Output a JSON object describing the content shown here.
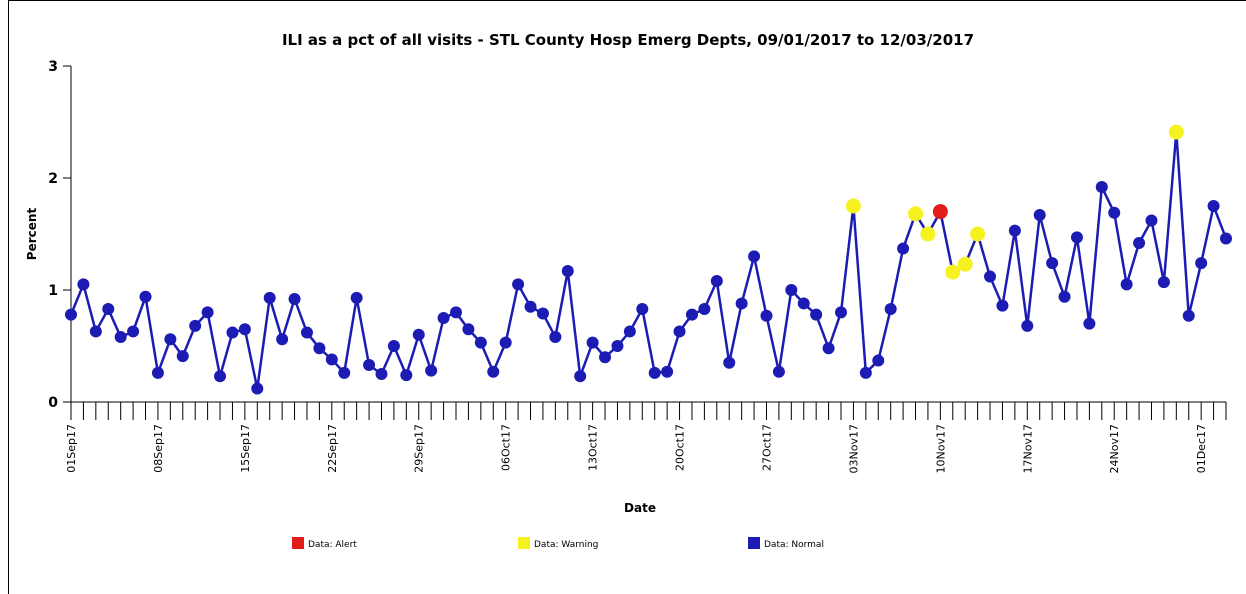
{
  "chart_data": {
    "type": "line",
    "title": "ILI as a pct of all visits - STL County Hosp Emerg Depts, 09/01/2017 to 12/03/2017",
    "xlabel": "Date",
    "ylabel": "Percent",
    "ylim": [
      0,
      3
    ],
    "yticks": [
      "0",
      "1",
      "2",
      "3"
    ],
    "x_start": "2017-09-01",
    "x_end": "2017-12-03",
    "x_tick_labels": [
      {
        "date": "2017-09-01",
        "label": "01Sep17"
      },
      {
        "date": "2017-09-08",
        "label": "08Sep17"
      },
      {
        "date": "2017-09-15",
        "label": "15Sep17"
      },
      {
        "date": "2017-09-22",
        "label": "22Sep17"
      },
      {
        "date": "2017-09-29",
        "label": "29Sep17"
      },
      {
        "date": "2017-10-06",
        "label": "06Oct17"
      },
      {
        "date": "2017-10-13",
        "label": "13Oct17"
      },
      {
        "date": "2017-10-20",
        "label": "20Oct17"
      },
      {
        "date": "2017-10-27",
        "label": "27Oct17"
      },
      {
        "date": "2017-11-03",
        "label": "03Nov17"
      },
      {
        "date": "2017-11-10",
        "label": "10Nov17"
      },
      {
        "date": "2017-11-17",
        "label": "17Nov17"
      },
      {
        "date": "2017-11-24",
        "label": "24Nov17"
      },
      {
        "date": "2017-12-01",
        "label": "01Dec17"
      }
    ],
    "grid": false,
    "legend_position": "bottom",
    "line_color": "#1c1cb4",
    "status_colors": {
      "alert": "#e21b1b",
      "warning": "#f5f21f",
      "normal": "#1c1cb4"
    },
    "legend": [
      {
        "key": "alert",
        "label": "Data: Alert",
        "color": "#e21b1b"
      },
      {
        "key": "warning",
        "label": "Data: Warning",
        "color": "#f5f21f"
      },
      {
        "key": "normal",
        "label": "Data: Normal",
        "color": "#1c1cb4"
      }
    ],
    "values": [
      0.78,
      1.05,
      0.63,
      0.83,
      0.58,
      0.63,
      0.94,
      0.26,
      0.56,
      0.41,
      0.68,
      0.8,
      0.23,
      0.62,
      0.65,
      0.12,
      0.93,
      0.56,
      0.92,
      0.62,
      0.48,
      0.38,
      0.26,
      0.93,
      0.33,
      0.25,
      0.5,
      0.24,
      0.6,
      0.28,
      0.75,
      0.8,
      0.65,
      0.53,
      0.27,
      0.53,
      1.05,
      0.85,
      0.79,
      0.58,
      1.17,
      0.23,
      0.53,
      0.4,
      0.5,
      0.63,
      0.83,
      0.26,
      0.27,
      0.63,
      0.78,
      0.83,
      1.08,
      0.35,
      0.88,
      1.3,
      0.77,
      0.27,
      1.0,
      0.88,
      0.78,
      0.48,
      0.8,
      1.75,
      0.26,
      0.37,
      0.83,
      1.37,
      1.68,
      1.5,
      1.7,
      1.16,
      1.23,
      1.5,
      1.12,
      0.86,
      1.53,
      0.68,
      1.67,
      1.24,
      0.94,
      1.47,
      0.7,
      1.92,
      1.69,
      1.05,
      1.42,
      1.62,
      1.07,
      2.41,
      0.77,
      1.24,
      1.75,
      1.46
    ],
    "status": [
      "normal",
      "normal",
      "normal",
      "normal",
      "normal",
      "normal",
      "normal",
      "normal",
      "normal",
      "normal",
      "normal",
      "normal",
      "normal",
      "normal",
      "normal",
      "normal",
      "normal",
      "normal",
      "normal",
      "normal",
      "normal",
      "normal",
      "normal",
      "normal",
      "normal",
      "normal",
      "normal",
      "normal",
      "normal",
      "normal",
      "normal",
      "normal",
      "normal",
      "normal",
      "normal",
      "normal",
      "normal",
      "normal",
      "normal",
      "normal",
      "normal",
      "normal",
      "normal",
      "normal",
      "normal",
      "normal",
      "normal",
      "normal",
      "normal",
      "normal",
      "normal",
      "normal",
      "normal",
      "normal",
      "normal",
      "normal",
      "normal",
      "normal",
      "normal",
      "normal",
      "normal",
      "normal",
      "normal",
      "warning",
      "normal",
      "normal",
      "normal",
      "normal",
      "warning",
      "warning",
      "alert",
      "warning",
      "warning",
      "warning",
      "normal",
      "normal",
      "normal",
      "normal",
      "normal",
      "normal",
      "normal",
      "normal",
      "normal",
      "normal",
      "normal",
      "normal",
      "normal",
      "normal",
      "normal",
      "warning",
      "normal",
      "normal",
      "normal",
      "normal"
    ]
  }
}
